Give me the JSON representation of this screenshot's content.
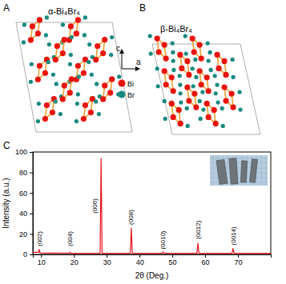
{
  "figure": {
    "panels": [
      "A",
      "B",
      "C"
    ],
    "structures": [
      "α-Bi₄Br₄",
      "β-Bi₄Br₄"
    ],
    "lattice_axes": [
      "c",
      "a"
    ],
    "atoms": [
      {
        "name": "Bi",
        "color": "#e8140c"
      },
      {
        "name": "Br",
        "color": "#17897f"
      }
    ]
  },
  "chart_data": {
    "type": "line",
    "x_label": "2θ (Deg.)",
    "y_label": "Intensity (a.u.)",
    "x": [
      7.5,
      9.2,
      9.45,
      9.7,
      18.5,
      18.8,
      19.1,
      28.0,
      28.3,
      28.6,
      37.2,
      37.5,
      37.8,
      46.9,
      47.2,
      47.5,
      57.5,
      57.8,
      58.1,
      68.2,
      68.5,
      68.8,
      80
    ],
    "series": [
      {
        "color": "#e8131b",
        "values": [
          2,
          2,
          5,
          1.5,
          1,
          2,
          1,
          1,
          94,
          1,
          1,
          26,
          1,
          1,
          2.5,
          1,
          1,
          11,
          1,
          1,
          6,
          1,
          1
        ]
      }
    ],
    "xlim": [
      7.5,
      80
    ],
    "ylim": [
      0,
      100
    ],
    "xticks": [
      10,
      20,
      30,
      40,
      50,
      60,
      70
    ],
    "yticks": [
      0,
      20,
      40,
      60,
      80,
      100
    ],
    "annotations": [
      {
        "text": "(002)",
        "x": 9.4,
        "y": 8
      },
      {
        "text": "(004)",
        "x": 18.7,
        "y": 8
      },
      {
        "text": "(006)",
        "x": 26.4,
        "y": 40
      },
      {
        "text": "(008)",
        "x": 37.4,
        "y": 29
      },
      {
        "text": "(0010)",
        "x": 47.2,
        "y": 5
      },
      {
        "text": "(0012)",
        "x": 57.8,
        "y": 15
      },
      {
        "text": "(0014)",
        "x": 68.5,
        "y": 9
      }
    ]
  }
}
